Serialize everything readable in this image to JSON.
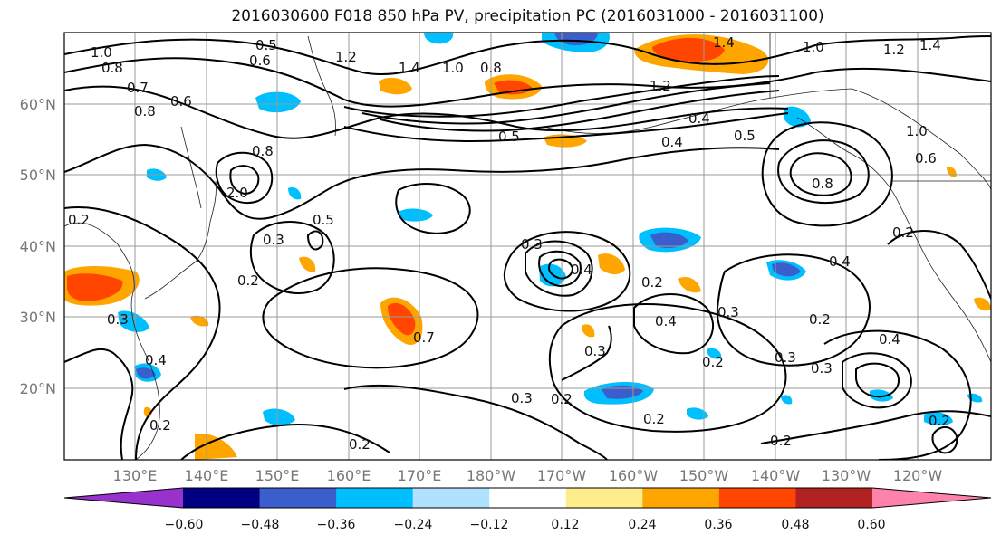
{
  "title": "2016030600 F018 850 hPa PV, precipitation PC (2016031000 - 2016031100)",
  "lat_labels": [
    "60°N",
    "50°N",
    "40°N",
    "30°N",
    "20°N"
  ],
  "lon_labels": [
    "130°E",
    "140°E",
    "150°E",
    "160°E",
    "170°E",
    "180°W",
    "170°W",
    "160°W",
    "150°W",
    "140°W",
    "130°W",
    "120°W"
  ],
  "colorbar": {
    "ticks": [
      "−0.60",
      "−0.48",
      "−0.36",
      "−0.24",
      "−0.12",
      "0.12",
      "0.24",
      "0.36",
      "0.48",
      "0.60"
    ],
    "colors": [
      "#9932cc",
      "#000080",
      "#3a5fcd",
      "#00bfff",
      "#b0e2ff",
      "#ffffff",
      "#ffec8b",
      "#ffa500",
      "#ff4500",
      "#b22222",
      "#ff82ab"
    ]
  },
  "contour_labels": [
    {
      "text": "1.0"
    },
    {
      "text": "0.8"
    },
    {
      "text": "0.5"
    },
    {
      "text": "0.6"
    },
    {
      "text": "1.2"
    },
    {
      "text": "1.4"
    },
    {
      "text": "1.4"
    },
    {
      "text": "1.0"
    },
    {
      "text": "1.2"
    },
    {
      "text": "1.4"
    },
    {
      "text": "1.0"
    },
    {
      "text": "1.2"
    },
    {
      "text": "0.7"
    },
    {
      "text": "0.6"
    },
    {
      "text": "0.8"
    },
    {
      "text": "0.8"
    },
    {
      "text": "0.5"
    },
    {
      "text": "0.4"
    },
    {
      "text": "0.5"
    },
    {
      "text": "0.4"
    },
    {
      "text": "1.0"
    },
    {
      "text": "0.8"
    },
    {
      "text": "0.6"
    },
    {
      "text": "0.8"
    },
    {
      "text": "2.0"
    },
    {
      "text": "0.5"
    },
    {
      "text": "0.3"
    },
    {
      "text": "0.2"
    },
    {
      "text": "0.3"
    },
    {
      "text": "0.4"
    },
    {
      "text": "0.2"
    },
    {
      "text": "0.4"
    },
    {
      "text": "0.2"
    },
    {
      "text": "0.4"
    },
    {
      "text": "0.3"
    },
    {
      "text": "0.2"
    },
    {
      "text": "0.4"
    },
    {
      "text": "0.3"
    },
    {
      "text": "0.2"
    },
    {
      "text": "0.3"
    },
    {
      "text": "0.3"
    },
    {
      "text": "0.2"
    },
    {
      "text": "0.2"
    },
    {
      "text": "0.2"
    },
    {
      "text": "0.2"
    },
    {
      "text": "0.3"
    },
    {
      "text": "0.2"
    },
    {
      "text": "0.2"
    },
    {
      "text": "0.2"
    },
    {
      "text": "0.3"
    },
    {
      "text": "0.7"
    },
    {
      "text": "0.4"
    }
  ]
}
